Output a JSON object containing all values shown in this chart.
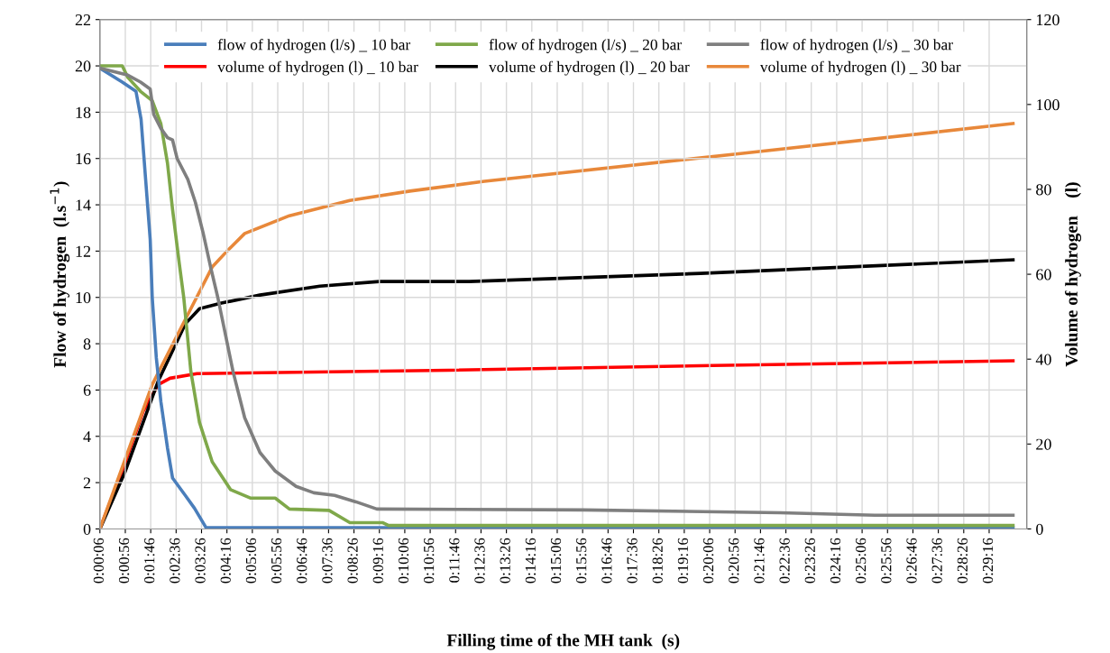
{
  "chart_data": {
    "type": "line",
    "xlabel": "Filling time of the MH tank  (s)",
    "ylabel": "Flow of hydrogen  (l.s$^{−1}$)",
    "y2label": "Volume of hydrogen    (l)",
    "xlim": [
      6,
      1830
    ],
    "ylim": [
      0,
      22
    ],
    "yticks": [
      0,
      2,
      4,
      6,
      8,
      10,
      12,
      14,
      16,
      18,
      20,
      22
    ],
    "y2lim": [
      0,
      120
    ],
    "y2ticks": [
      0,
      20,
      40,
      60,
      80,
      100,
      120
    ],
    "xticks": [
      {
        "value": 6,
        "label": "0:00:06"
      },
      {
        "value": 56,
        "label": "0:00:56"
      },
      {
        "value": 106,
        "label": "0:01:46"
      },
      {
        "value": 156,
        "label": "0:02:36"
      },
      {
        "value": 206,
        "label": "0:03:26"
      },
      {
        "value": 256,
        "label": "0:04:16"
      },
      {
        "value": 306,
        "label": "0:05:06"
      },
      {
        "value": 356,
        "label": "0:05:56"
      },
      {
        "value": 406,
        "label": "0:06:46"
      },
      {
        "value": 456,
        "label": "0:07:36"
      },
      {
        "value": 506,
        "label": "0:08:26"
      },
      {
        "value": 556,
        "label": "0:09:16"
      },
      {
        "value": 606,
        "label": "0:10:06"
      },
      {
        "value": 656,
        "label": "0:10:56"
      },
      {
        "value": 706,
        "label": "0:11:46"
      },
      {
        "value": 756,
        "label": "0:12:36"
      },
      {
        "value": 806,
        "label": "0:13:26"
      },
      {
        "value": 856,
        "label": "0:14:16"
      },
      {
        "value": 906,
        "label": "0:15:06"
      },
      {
        "value": 956,
        "label": "0:15:56"
      },
      {
        "value": 1006,
        "label": "0:16:46"
      },
      {
        "value": 1056,
        "label": "0:17:36"
      },
      {
        "value": 1106,
        "label": "0:18:26"
      },
      {
        "value": 1156,
        "label": "0:19:16"
      },
      {
        "value": 1206,
        "label": "0:20:06"
      },
      {
        "value": 1256,
        "label": "0:20:56"
      },
      {
        "value": 1306,
        "label": "0:21:46"
      },
      {
        "value": 1356,
        "label": "0:22:36"
      },
      {
        "value": 1406,
        "label": "0:23:26"
      },
      {
        "value": 1456,
        "label": "0:24:16"
      },
      {
        "value": 1506,
        "label": "0:25:06"
      },
      {
        "value": 1556,
        "label": "0:25:56"
      },
      {
        "value": 1606,
        "label": "0:26:46"
      },
      {
        "value": 1656,
        "label": "0:27:36"
      },
      {
        "value": 1706,
        "label": "0:28:26"
      },
      {
        "value": 1756,
        "label": "0:29:16"
      }
    ],
    "grid": true,
    "legend": "top",
    "marker": "none",
    "line_style": "solid",
    "series": [
      {
        "name": "flow of hydrogen (l/s) _ 10 bar",
        "color": "#4a7ebb",
        "x": [
          6,
          50,
          77,
          87,
          96,
          105,
          109,
          117,
          126,
          139,
          149,
          174,
          192,
          215,
          1803
        ],
        "values": [
          19.9,
          19.3,
          18.9,
          17.7,
          15.1,
          12.5,
          10.0,
          7.4,
          5.5,
          3.5,
          2.2,
          1.45,
          0.9,
          0.05,
          0.05
        ]
      },
      {
        "name": "flow of hydrogen (l/s) _ 20 bar",
        "color": "#7fa84a",
        "x": [
          6,
          50,
          61,
          86,
          109,
          126,
          139,
          149,
          162,
          171,
          185,
          202,
          227,
          263,
          303,
          351,
          379,
          457,
          498,
          563,
          574,
          1803
        ],
        "values": [
          20.0,
          20.0,
          19.5,
          18.9,
          18.5,
          17.5,
          15.8,
          13.8,
          11.5,
          10.0,
          6.8,
          4.6,
          2.9,
          1.7,
          1.33,
          1.33,
          0.86,
          0.8,
          0.27,
          0.27,
          0.15,
          0.15
        ]
      },
      {
        "name": "flow of hydrogen (l/s) _ 30 bar",
        "color": "#7f7f7f",
        "x": [
          6,
          61,
          86,
          105,
          112,
          126,
          139,
          149,
          158,
          179,
          194,
          209,
          224,
          238,
          268,
          291,
          321,
          351,
          392,
          427,
          468,
          510,
          551,
          958,
          1345,
          1531,
          1803
        ],
        "values": [
          19.9,
          19.6,
          19.3,
          19.0,
          17.9,
          17.3,
          16.9,
          16.8,
          16.0,
          15.1,
          14.1,
          12.8,
          11.3,
          10.0,
          6.8,
          4.8,
          3.3,
          2.5,
          1.84,
          1.56,
          1.45,
          1.17,
          0.86,
          0.82,
          0.7,
          0.59,
          0.59
        ]
      },
      {
        "name": "volume of hydrogen (l) _ 10 bar",
        "color": "#ff0000",
        "axis": "y2",
        "x": [
          6,
          56,
          91,
          121,
          144,
          197,
          692,
          1212,
          1803
        ],
        "values": [
          0,
          15.7,
          27.7,
          34.0,
          35.5,
          36.6,
          37.4,
          38.5,
          39.6
        ]
      },
      {
        "name": "volume of hydrogen (l) _ 20 bar",
        "color": "#000000",
        "axis": "y2",
        "x": [
          6,
          56,
          121,
          174,
          202,
          245,
          321,
          439,
          556,
          733,
          1188,
          1803
        ],
        "values": [
          0,
          13.6,
          34.9,
          48.3,
          51.9,
          53.2,
          55.1,
          57.2,
          58.3,
          58.3,
          60.2,
          63.4
        ]
      },
      {
        "name": "volume of hydrogen (l) _ 30 bar",
        "color": "#e8883a",
        "axis": "y2",
        "x": [
          6,
          109,
          167,
          227,
          255,
          291,
          379,
          498,
          616,
          763,
          1271,
          1803
        ],
        "values": [
          0,
          34.0,
          47.7,
          61.7,
          65.3,
          69.6,
          73.8,
          77.4,
          79.6,
          81.9,
          88.5,
          95.5
        ]
      }
    ]
  }
}
